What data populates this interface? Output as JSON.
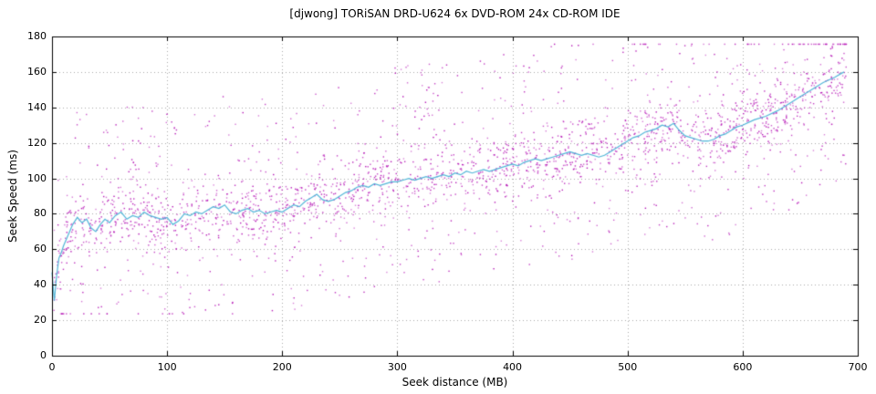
{
  "page": {
    "background": "#ffffff"
  },
  "chart_data": {
    "type": "scatter",
    "title": "[djwong] TORiSAN DRD-U624 6x DVD-ROM 24x CD-ROM IDE",
    "xlabel": "Seek distance (MB)",
    "ylabel": "Seek Speed (ms)",
    "xlim": [
      0,
      700
    ],
    "ylim": [
      0,
      180
    ],
    "x_ticks": [
      0,
      100,
      200,
      300,
      400,
      500,
      600,
      700
    ],
    "y_ticks": [
      0,
      20,
      40,
      60,
      80,
      100,
      120,
      140,
      160,
      180
    ],
    "grid": true,
    "legend": "none",
    "colors": {
      "points": "#b412b4",
      "line": "#52b6d8",
      "grid": "#a8a8a8",
      "axis": "#000000",
      "text": "#000000"
    },
    "series": [
      {
        "name": "seek samples",
        "type": "points",
        "color": "#b412b4",
        "generated": {
          "seed": 42,
          "count": 2600,
          "x_range": [
            0,
            690
          ],
          "band_sigma": 9,
          "outlier_fraction": 0.33,
          "outlier_range": [
            -60,
            65
          ],
          "y_clamp": [
            24,
            176
          ]
        }
      },
      {
        "name": "moving average",
        "type": "line",
        "color": "#52b6d8",
        "points": [
          [
            0,
            47
          ],
          [
            2,
            31
          ],
          [
            4,
            45
          ],
          [
            6,
            55
          ],
          [
            8,
            58
          ],
          [
            10,
            62
          ],
          [
            14,
            68
          ],
          [
            18,
            74
          ],
          [
            22,
            78
          ],
          [
            26,
            75
          ],
          [
            30,
            77
          ],
          [
            34,
            72
          ],
          [
            38,
            70
          ],
          [
            42,
            74
          ],
          [
            46,
            77
          ],
          [
            50,
            75
          ],
          [
            55,
            79
          ],
          [
            60,
            81
          ],
          [
            65,
            77
          ],
          [
            70,
            79
          ],
          [
            75,
            78
          ],
          [
            80,
            81
          ],
          [
            85,
            79
          ],
          [
            90,
            78
          ],
          [
            95,
            77
          ],
          [
            100,
            78
          ],
          [
            105,
            74
          ],
          [
            110,
            76
          ],
          [
            115,
            80
          ],
          [
            120,
            79
          ],
          [
            125,
            81
          ],
          [
            130,
            80
          ],
          [
            135,
            82
          ],
          [
            140,
            84
          ],
          [
            145,
            83
          ],
          [
            150,
            85
          ],
          [
            155,
            81
          ],
          [
            160,
            80
          ],
          [
            165,
            82
          ],
          [
            170,
            83
          ],
          [
            175,
            81
          ],
          [
            180,
            82
          ],
          [
            185,
            80
          ],
          [
            190,
            81
          ],
          [
            195,
            82
          ],
          [
            200,
            81
          ],
          [
            205,
            83
          ],
          [
            210,
            85
          ],
          [
            215,
            84
          ],
          [
            220,
            87
          ],
          [
            225,
            89
          ],
          [
            230,
            91
          ],
          [
            235,
            88
          ],
          [
            240,
            87
          ],
          [
            245,
            88
          ],
          [
            250,
            90
          ],
          [
            255,
            92
          ],
          [
            260,
            93
          ],
          [
            265,
            95
          ],
          [
            270,
            96
          ],
          [
            275,
            95
          ],
          [
            280,
            97
          ],
          [
            285,
            96
          ],
          [
            290,
            97
          ],
          [
            295,
            98
          ],
          [
            300,
            98
          ],
          [
            305,
            99
          ],
          [
            310,
            100
          ],
          [
            315,
            99
          ],
          [
            320,
            100
          ],
          [
            325,
            101
          ],
          [
            330,
            100
          ],
          [
            335,
            101
          ],
          [
            340,
            102
          ],
          [
            345,
            101
          ],
          [
            350,
            103
          ],
          [
            355,
            102
          ],
          [
            360,
            104
          ],
          [
            365,
            103
          ],
          [
            370,
            104
          ],
          [
            375,
            105
          ],
          [
            380,
            104
          ],
          [
            385,
            105
          ],
          [
            390,
            106
          ],
          [
            395,
            107
          ],
          [
            400,
            108
          ],
          [
            405,
            107
          ],
          [
            410,
            109
          ],
          [
            415,
            110
          ],
          [
            420,
            111
          ],
          [
            425,
            110
          ],
          [
            430,
            111
          ],
          [
            435,
            112
          ],
          [
            440,
            113
          ],
          [
            445,
            114
          ],
          [
            450,
            115
          ],
          [
            455,
            114
          ],
          [
            460,
            113
          ],
          [
            465,
            114
          ],
          [
            470,
            113
          ],
          [
            475,
            112
          ],
          [
            480,
            113
          ],
          [
            485,
            115
          ],
          [
            490,
            117
          ],
          [
            495,
            119
          ],
          [
            500,
            121
          ],
          [
            505,
            123
          ],
          [
            510,
            124
          ],
          [
            515,
            126
          ],
          [
            520,
            127
          ],
          [
            525,
            128
          ],
          [
            530,
            130
          ],
          [
            535,
            129
          ],
          [
            540,
            131
          ],
          [
            545,
            127
          ],
          [
            550,
            124
          ],
          [
            555,
            123
          ],
          [
            560,
            122
          ],
          [
            565,
            121
          ],
          [
            570,
            121
          ],
          [
            575,
            122
          ],
          [
            580,
            124
          ],
          [
            585,
            125
          ],
          [
            590,
            127
          ],
          [
            595,
            129
          ],
          [
            600,
            130
          ],
          [
            610,
            133
          ],
          [
            620,
            135
          ],
          [
            630,
            138
          ],
          [
            640,
            142
          ],
          [
            650,
            146
          ],
          [
            660,
            150
          ],
          [
            670,
            154
          ],
          [
            680,
            157
          ],
          [
            688,
            160
          ]
        ]
      }
    ]
  }
}
